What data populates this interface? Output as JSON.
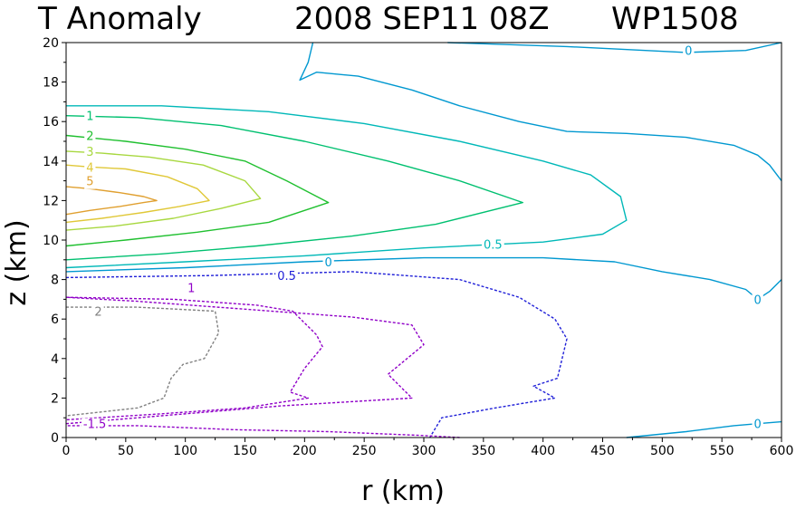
{
  "chart_data": {
    "type": "contour",
    "title_parts": [
      "T Anomaly",
      "2008 SEP11 08Z",
      "WP1508"
    ],
    "xlabel": "r (km)",
    "ylabel": "z (km)",
    "xlim": [
      0,
      600
    ],
    "ylim": [
      0,
      20
    ],
    "x_ticks": [
      "0",
      "50",
      "100",
      "150",
      "200",
      "250",
      "300",
      "350",
      "400",
      "450",
      "500",
      "550",
      "600"
    ],
    "y_ticks": [
      "0",
      "2",
      "4",
      "6",
      "8",
      "10",
      "12",
      "14",
      "16",
      "18",
      "20"
    ],
    "grid": false,
    "colors": {
      "5": "#E0A030",
      "4": "#E0C838",
      "3": "#A8D840",
      "2": "#20C030",
      "1": "#00C070",
      "0.5": "#00B8B8",
      "0": "#0098D0",
      "-0.5": "#2020D8",
      "-1": "#9000C8",
      "-1.5": "#9000C8",
      "-2": "#808080"
    },
    "contours": [
      {
        "level": "5",
        "dashed": false,
        "points": [
          [
            0,
            11.3
          ],
          [
            20,
            11.5
          ],
          [
            45,
            11.7
          ],
          [
            65,
            11.9
          ],
          [
            76,
            12.0
          ],
          [
            65,
            12.2
          ],
          [
            45,
            12.4
          ],
          [
            20,
            12.6
          ],
          [
            0,
            12.7
          ]
        ]
      },
      {
        "level": "4",
        "dashed": false,
        "points": [
          [
            0,
            10.9
          ],
          [
            30,
            11.1
          ],
          [
            65,
            11.4
          ],
          [
            95,
            11.7
          ],
          [
            120,
            12.0
          ],
          [
            110,
            12.6
          ],
          [
            85,
            13.2
          ],
          [
            50,
            13.6
          ],
          [
            20,
            13.7
          ],
          [
            0,
            13.8
          ]
        ]
      },
      {
        "level": "3",
        "dashed": false,
        "points": [
          [
            0,
            10.5
          ],
          [
            40,
            10.7
          ],
          [
            90,
            11.1
          ],
          [
            130,
            11.6
          ],
          [
            163,
            12.1
          ],
          [
            150,
            13.0
          ],
          [
            115,
            13.8
          ],
          [
            70,
            14.2
          ],
          [
            30,
            14.4
          ],
          [
            0,
            14.5
          ]
        ]
      },
      {
        "level": "2",
        "dashed": false,
        "points": [
          [
            0,
            9.7
          ],
          [
            50,
            10.0
          ],
          [
            110,
            10.4
          ],
          [
            170,
            10.9
          ],
          [
            220,
            11.9
          ],
          [
            185,
            13.0
          ],
          [
            150,
            14.0
          ],
          [
            100,
            14.6
          ],
          [
            50,
            15.0
          ],
          [
            0,
            15.3
          ]
        ]
      },
      {
        "level": "1",
        "dashed": false,
        "points": [
          [
            0,
            9.0
          ],
          [
            80,
            9.3
          ],
          [
            160,
            9.7
          ],
          [
            240,
            10.2
          ],
          [
            310,
            10.8
          ],
          [
            383,
            11.9
          ],
          [
            330,
            13.0
          ],
          [
            270,
            14.0
          ],
          [
            200,
            15.0
          ],
          [
            130,
            15.8
          ],
          [
            60,
            16.2
          ],
          [
            0,
            16.3
          ]
        ]
      },
      {
        "level": "0.5",
        "dashed": false,
        "points": [
          [
            0,
            8.6
          ],
          [
            100,
            8.9
          ],
          [
            200,
            9.2
          ],
          [
            300,
            9.6
          ],
          [
            400,
            9.9
          ],
          [
            450,
            10.3
          ],
          [
            470,
            11.0
          ],
          [
            465,
            12.2
          ],
          [
            440,
            13.3
          ],
          [
            400,
            14.0
          ],
          [
            330,
            15.0
          ],
          [
            250,
            15.9
          ],
          [
            170,
            16.5
          ],
          [
            80,
            16.8
          ],
          [
            0,
            16.8
          ]
        ]
      },
      {
        "level": "0",
        "dashed": false,
        "points": [
          [
            0,
            8.4
          ],
          [
            100,
            8.6
          ],
          [
            200,
            8.9
          ],
          [
            300,
            9.1
          ],
          [
            400,
            9.1
          ],
          [
            460,
            8.9
          ],
          [
            500,
            8.4
          ],
          [
            540,
            8.0
          ],
          [
            570,
            7.5
          ],
          [
            580,
            7.0
          ],
          [
            590,
            7.4
          ],
          [
            600,
            8.0
          ]
        ]
      },
      {
        "level": "0",
        "dashed": false,
        "points": [
          [
            600,
            13.0
          ],
          [
            590,
            13.8
          ],
          [
            580,
            14.3
          ],
          [
            560,
            14.8
          ],
          [
            520,
            15.2
          ],
          [
            470,
            15.4
          ],
          [
            420,
            15.5
          ],
          [
            380,
            16.0
          ],
          [
            330,
            16.8
          ],
          [
            290,
            17.6
          ],
          [
            245,
            18.3
          ],
          [
            210,
            18.5
          ],
          [
            196,
            18.1
          ],
          [
            203,
            19.0
          ],
          [
            207,
            20.0
          ]
        ]
      },
      {
        "level": "0",
        "dashed": false,
        "points": [
          [
            320,
            20.0
          ],
          [
            420,
            19.8
          ],
          [
            520,
            19.5
          ],
          [
            570,
            19.6
          ],
          [
            600,
            20.0
          ]
        ]
      },
      {
        "level": "0",
        "dashed": false,
        "points": [
          [
            470,
            0.0
          ],
          [
            520,
            0.3
          ],
          [
            560,
            0.6
          ],
          [
            580,
            0.7
          ],
          [
            600,
            0.8
          ]
        ]
      },
      {
        "level": "-0.5",
        "dashed": true,
        "points": [
          [
            0,
            8.1
          ],
          [
            120,
            8.2
          ],
          [
            240,
            8.4
          ],
          [
            330,
            8.0
          ],
          [
            380,
            7.1
          ],
          [
            410,
            6.0
          ],
          [
            420,
            5.0
          ],
          [
            412,
            3.0
          ],
          [
            392,
            2.6
          ],
          [
            410,
            2.0
          ],
          [
            360,
            1.5
          ],
          [
            315,
            1.0
          ],
          [
            305,
            0.0
          ]
        ]
      },
      {
        "level": "-1",
        "dashed": true,
        "points": [
          [
            0,
            7.1
          ],
          [
            90,
            7.0
          ],
          [
            160,
            6.7
          ],
          [
            190,
            6.4
          ],
          [
            210,
            5.2
          ],
          [
            215,
            4.6
          ],
          [
            200,
            3.5
          ],
          [
            188,
            2.3
          ],
          [
            203,
            2.0
          ],
          [
            150,
            1.5
          ],
          [
            80,
            1.2
          ],
          [
            0,
            0.9
          ]
        ]
      },
      {
        "level": "-1.5",
        "dashed": true,
        "points": [
          [
            330,
            0.0
          ],
          [
            300,
            0.1
          ],
          [
            220,
            0.3
          ],
          [
            140,
            0.4
          ],
          [
            60,
            0.6
          ],
          [
            0,
            0.6
          ]
        ]
      },
      {
        "level": "-1.5",
        "dashed": true,
        "points": [
          [
            0,
            0.7
          ],
          [
            80,
            1.1
          ],
          [
            180,
            1.6
          ],
          [
            290,
            2.0
          ],
          [
            270,
            3.2
          ],
          [
            300,
            4.7
          ],
          [
            290,
            5.7
          ],
          [
            240,
            6.1
          ],
          [
            150,
            6.5
          ],
          [
            60,
            6.9
          ],
          [
            0,
            7.1
          ]
        ]
      },
      {
        "level": "-2",
        "dashed": true,
        "points": [
          [
            0,
            6.6
          ],
          [
            60,
            6.6
          ],
          [
            125,
            6.4
          ],
          [
            128,
            5.3
          ],
          [
            116,
            4.0
          ],
          [
            98,
            3.7
          ],
          [
            88,
            3.0
          ],
          [
            82,
            2.0
          ],
          [
            60,
            1.5
          ],
          [
            30,
            1.3
          ],
          [
            0,
            1.1
          ]
        ]
      }
    ],
    "labels": [
      {
        "text": "5",
        "level": "5",
        "x": 20,
        "y": 13.0
      },
      {
        "text": "4",
        "level": "4",
        "x": 20,
        "y": 13.7
      },
      {
        "text": "3",
        "level": "3",
        "x": 20,
        "y": 14.5
      },
      {
        "text": "2",
        "level": "2",
        "x": 20,
        "y": 15.3
      },
      {
        "text": "1",
        "level": "1",
        "x": 20,
        "y": 16.3
      },
      {
        "text": "0.5",
        "level": "0.5",
        "x": 358,
        "y": 9.8
      },
      {
        "text": "0",
        "level": "0",
        "x": 220,
        "y": 8.9
      },
      {
        "text": "0",
        "level": "0",
        "x": 522,
        "y": 19.6
      },
      {
        "text": "0",
        "level": "0",
        "x": 580,
        "y": 7.0
      },
      {
        "text": "0",
        "level": "0",
        "x": 580,
        "y": 0.7
      },
      {
        "text": "0.5",
        "level": "-0.5",
        "x": 185,
        "y": 8.2
      },
      {
        "text": "1",
        "level": "-1",
        "x": 105,
        "y": 7.6
      },
      {
        "text": "2",
        "level": "-2",
        "x": 27,
        "y": 6.4
      },
      {
        "text": "-1.5",
        "level": "-1.5",
        "x": 24,
        "y": 0.7
      }
    ]
  }
}
